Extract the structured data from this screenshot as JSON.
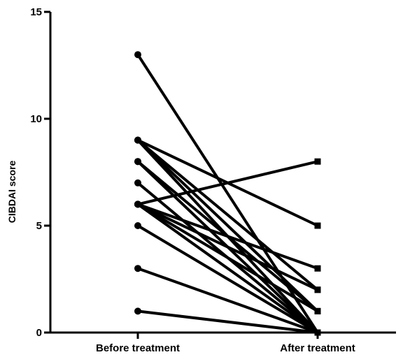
{
  "chart_data": {
    "type": "line",
    "title": "",
    "xlabel": "",
    "ylabel": "CIBDAI score",
    "categories": [
      "Before treatment",
      "After treatment"
    ],
    "ylim": [
      0,
      15
    ],
    "yticks": [
      0,
      5,
      10,
      15
    ],
    "grid": false,
    "legend": "none",
    "pairs": [
      {
        "before": 13,
        "after": 0
      },
      {
        "before": 9,
        "after": 5
      },
      {
        "before": 9,
        "after": 2
      },
      {
        "before": 9,
        "after": 1
      },
      {
        "before": 9,
        "after": 0
      },
      {
        "before": 8,
        "after": 1
      },
      {
        "before": 8,
        "after": 0
      },
      {
        "before": 7,
        "after": 0
      },
      {
        "before": 6,
        "after": 8
      },
      {
        "before": 6,
        "after": 3
      },
      {
        "before": 6,
        "after": 2
      },
      {
        "before": 6,
        "after": 1
      },
      {
        "before": 6,
        "after": 0
      },
      {
        "before": 5,
        "after": 0
      },
      {
        "before": 3,
        "after": 0
      },
      {
        "before": 1,
        "after": 0
      }
    ],
    "colors": {
      "line": "#000000",
      "axis": "#000000"
    },
    "markers": {
      "before": "circle",
      "after": "square"
    }
  }
}
